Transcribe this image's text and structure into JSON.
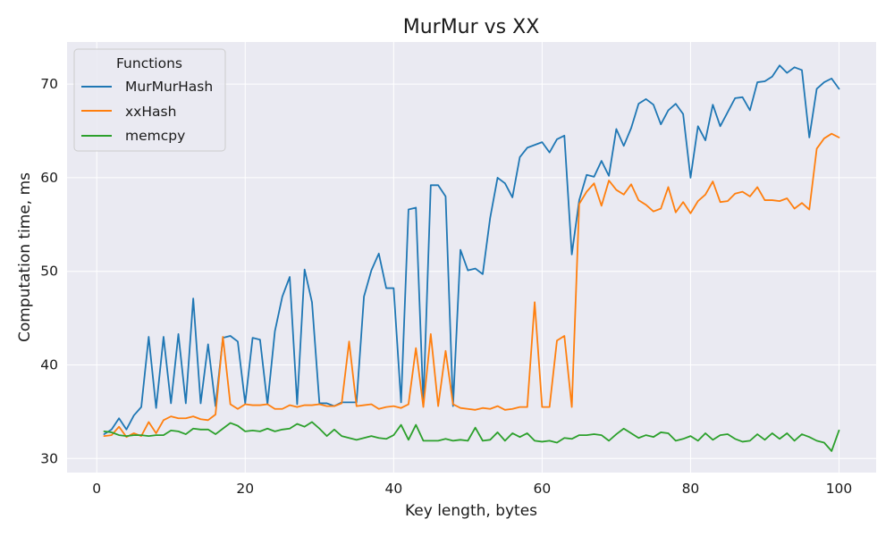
{
  "chart_data": {
    "type": "line",
    "title": "MurMur vs XX",
    "xlabel": "Key length, bytes",
    "ylabel": "Computation time, ms",
    "xlim": [
      -4,
      105
    ],
    "ylim": [
      28.5,
      74.5
    ],
    "xticks": [
      0,
      20,
      40,
      60,
      80,
      100
    ],
    "yticks": [
      30,
      40,
      50,
      60,
      70
    ],
    "grid": true,
    "background": "#eaeaf2",
    "legend": {
      "title": "Functions",
      "placement": "top-left"
    },
    "x": [
      1,
      2,
      3,
      4,
      5,
      6,
      7,
      8,
      9,
      10,
      11,
      12,
      13,
      14,
      15,
      16,
      17,
      18,
      19,
      20,
      21,
      22,
      23,
      24,
      25,
      26,
      27,
      28,
      29,
      30,
      31,
      32,
      33,
      34,
      35,
      36,
      37,
      38,
      39,
      40,
      41,
      42,
      43,
      44,
      45,
      46,
      47,
      48,
      49,
      50,
      51,
      52,
      53,
      54,
      55,
      56,
      57,
      58,
      59,
      60,
      61,
      62,
      63,
      64,
      65,
      66,
      67,
      68,
      69,
      70,
      71,
      72,
      73,
      74,
      75,
      76,
      77,
      78,
      79,
      80,
      81,
      82,
      83,
      84,
      85,
      86,
      87,
      88,
      89,
      90,
      91,
      92,
      93,
      94,
      95,
      96,
      97,
      98,
      99,
      100
    ],
    "series": [
      {
        "name": "MurMurHash",
        "color": "#1f77b4",
        "values": [
          32.6,
          33.1,
          34.3,
          33.1,
          34.6,
          35.5,
          43.0,
          35.4,
          43.0,
          35.9,
          43.3,
          35.9,
          47.1,
          35.9,
          42.2,
          35.6,
          42.9,
          43.1,
          42.5,
          35.9,
          42.9,
          42.7,
          35.8,
          43.6,
          47.3,
          49.4,
          35.8,
          50.2,
          46.7,
          35.9,
          35.9,
          35.6,
          36.0,
          36.0,
          36.0,
          47.3,
          50.1,
          51.9,
          48.2,
          48.2,
          36.0,
          56.6,
          56.8,
          35.9,
          59.2,
          59.2,
          58.0,
          35.6,
          52.3,
          50.1,
          50.3,
          49.7,
          55.7,
          60.0,
          59.4,
          57.9,
          62.2,
          63.2,
          63.5,
          63.8,
          62.7,
          64.1,
          64.5,
          51.8,
          57.6,
          60.3,
          60.1,
          61.8,
          60.2,
          65.2,
          63.4,
          65.3,
          67.9,
          68.4,
          67.8,
          65.7,
          67.2,
          67.9,
          66.8,
          60.0,
          65.5,
          64.0,
          67.8,
          65.5,
          67.0,
          68.5,
          68.6,
          67.2,
          70.2,
          70.3,
          70.8,
          72.0,
          71.2,
          71.8,
          71.5,
          64.3,
          69.5,
          70.2,
          70.6,
          69.5
        ]
      },
      {
        "name": "xxHash",
        "color": "#ff7f0e",
        "values": [
          32.4,
          32.5,
          33.4,
          32.3,
          32.7,
          32.4,
          33.9,
          32.7,
          34.1,
          34.5,
          34.3,
          34.3,
          34.5,
          34.2,
          34.1,
          34.7,
          43.0,
          35.8,
          35.3,
          35.8,
          35.7,
          35.7,
          35.8,
          35.3,
          35.3,
          35.7,
          35.5,
          35.7,
          35.7,
          35.8,
          35.6,
          35.6,
          35.9,
          42.5,
          35.6,
          35.7,
          35.8,
          35.3,
          35.5,
          35.6,
          35.4,
          35.8,
          41.8,
          35.5,
          43.3,
          35.6,
          41.5,
          35.8,
          35.4,
          35.3,
          35.2,
          35.4,
          35.3,
          35.6,
          35.2,
          35.3,
          35.5,
          35.5,
          46.7,
          35.5,
          35.5,
          42.6,
          43.1,
          35.5,
          57.2,
          58.5,
          59.4,
          57.0,
          59.7,
          58.7,
          58.2,
          59.3,
          57.6,
          57.1,
          56.4,
          56.7,
          59.0,
          56.3,
          57.4,
          56.2,
          57.5,
          58.2,
          59.6,
          57.4,
          57.5,
          58.3,
          58.5,
          58.0,
          59.0,
          57.6,
          57.6,
          57.5,
          57.8,
          56.7,
          57.3,
          56.6,
          63.1,
          64.2,
          64.7,
          64.3
        ]
      },
      {
        "name": "memcpy",
        "color": "#2ca02c",
        "values": [
          32.9,
          32.8,
          32.5,
          32.4,
          32.5,
          32.5,
          32.4,
          32.5,
          32.5,
          33.0,
          32.9,
          32.6,
          33.2,
          33.1,
          33.1,
          32.6,
          33.2,
          33.8,
          33.5,
          32.9,
          33.0,
          32.9,
          33.2,
          32.9,
          33.1,
          33.2,
          33.7,
          33.4,
          33.9,
          33.2,
          32.4,
          33.1,
          32.4,
          32.2,
          32.0,
          32.2,
          32.4,
          32.2,
          32.1,
          32.5,
          33.6,
          32.0,
          33.6,
          31.9,
          31.9,
          31.9,
          32.1,
          31.9,
          32.0,
          31.9,
          33.3,
          31.9,
          32.0,
          32.8,
          31.9,
          32.7,
          32.3,
          32.7,
          31.9,
          31.8,
          31.9,
          31.7,
          32.2,
          32.1,
          32.5,
          32.5,
          32.6,
          32.5,
          31.9,
          32.6,
          33.2,
          32.7,
          32.2,
          32.5,
          32.3,
          32.8,
          32.7,
          31.9,
          32.1,
          32.4,
          31.9,
          32.7,
          32.0,
          32.5,
          32.6,
          32.1,
          31.8,
          31.9,
          32.6,
          32.0,
          32.7,
          32.1,
          32.7,
          31.9,
          32.6,
          32.3,
          31.9,
          31.7,
          30.8,
          33.0
        ]
      }
    ]
  }
}
